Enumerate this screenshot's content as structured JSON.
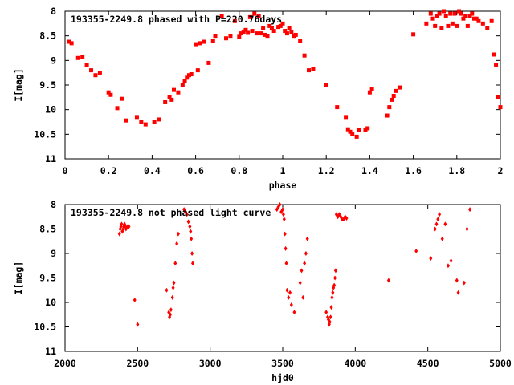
{
  "chart_data": [
    {
      "type": "scatter",
      "title": "193355-2249.8 phased with P=220.76days",
      "xlabel": "phase",
      "ylabel": "I[mag]",
      "xlim": [
        0,
        2
      ],
      "ylim": [
        8,
        11
      ],
      "y_inverted": true,
      "xticks": [
        0,
        0.2,
        0.4,
        0.6,
        0.8,
        1,
        1.2,
        1.4,
        1.6,
        1.8,
        2
      ],
      "xtick_labels": [
        "0",
        "0.2",
        "0.4",
        "0.6",
        "0.8",
        "1",
        "1.2",
        "1.4",
        "1.6",
        "1.8",
        "2"
      ],
      "yticks": [
        8,
        8.5,
        9,
        9.5,
        10,
        10.5,
        11
      ],
      "ytick_labels": [
        "8",
        "8.5",
        "9",
        "9.5",
        "10",
        "10.5",
        "11"
      ],
      "marker": "plus",
      "color": "#ff0000",
      "x": [
        0.02,
        0.03,
        0.06,
        0.08,
        0.1,
        0.12,
        0.14,
        0.16,
        0.2,
        0.21,
        0.24,
        0.26,
        0.28,
        0.33,
        0.35,
        0.37,
        0.41,
        0.43,
        0.46,
        0.48,
        0.49,
        0.5,
        0.52,
        0.54,
        0.55,
        0.56,
        0.57,
        0.58,
        0.6,
        0.61,
        0.62,
        0.64,
        0.66,
        0.68,
        0.69,
        0.72,
        0.74,
        0.76,
        0.78,
        0.8,
        0.81,
        0.82,
        0.83,
        0.84,
        0.85,
        0.86,
        0.87,
        0.88,
        0.89,
        0.9,
        0.91,
        0.92,
        0.93,
        0.94,
        0.95,
        0.96,
        0.98,
        0.99,
        1.0,
        1.01,
        1.02,
        1.03,
        1.04,
        1.05,
        1.06,
        1.08,
        1.1,
        1.12,
        1.14,
        1.2,
        1.25,
        1.29,
        1.3,
        1.31,
        1.32,
        1.34,
        1.35,
        1.38,
        1.39,
        1.4,
        1.41,
        1.48,
        1.49,
        1.5,
        1.51,
        1.52,
        1.54,
        1.6,
        1.66,
        1.68,
        1.69,
        1.7,
        1.71,
        1.72,
        1.73,
        1.74,
        1.75,
        1.76,
        1.77,
        1.78,
        1.79,
        1.8,
        1.81,
        1.82,
        1.83,
        1.84,
        1.85,
        1.86,
        1.87,
        1.88,
        1.89,
        1.9,
        1.92,
        1.94,
        1.96,
        1.97,
        1.98,
        1.99,
        2.0
      ],
      "y": [
        8.62,
        8.65,
        8.95,
        8.93,
        9.1,
        9.2,
        9.3,
        9.25,
        9.65,
        9.7,
        9.97,
        9.78,
        10.22,
        10.15,
        10.25,
        10.3,
        10.25,
        10.2,
        9.85,
        9.75,
        9.8,
        9.6,
        9.65,
        9.5,
        9.42,
        9.35,
        9.3,
        9.28,
        8.67,
        9.2,
        8.65,
        8.62,
        9.05,
        8.6,
        8.5,
        8.1,
        8.55,
        8.5,
        8.2,
        8.52,
        8.45,
        8.42,
        8.38,
        8.44,
        8.12,
        8.4,
        8.05,
        8.45,
        8.1,
        8.45,
        8.35,
        8.48,
        8.5,
        8.3,
        8.35,
        8.4,
        8.32,
        8.3,
        8.25,
        8.4,
        8.45,
        8.35,
        8.42,
        8.5,
        8.48,
        8.6,
        8.9,
        9.2,
        9.18,
        9.5,
        9.95,
        10.15,
        10.4,
        10.45,
        10.5,
        10.55,
        10.42,
        10.42,
        10.38,
        9.65,
        9.58,
        10.12,
        9.95,
        9.8,
        9.72,
        9.62,
        9.55,
        8.47,
        8.25,
        8.05,
        8.15,
        8.3,
        8.1,
        8.05,
        8.35,
        8.0,
        8.1,
        8.3,
        8.05,
        8.25,
        8.05,
        8.3,
        8.0,
        8.05,
        8.15,
        8.1,
        8.3,
        8.1,
        8.05,
        8.15,
        8.15,
        8.2,
        8.25,
        8.35,
        8.2,
        8.88,
        9.1,
        9.75,
        9.95
      ]
    },
    {
      "type": "scatter",
      "title": "193355-2249.8 not phased light curve",
      "xlabel": "hjd0",
      "ylabel": "I[mag]",
      "xlim": [
        2000,
        5000
      ],
      "ylim": [
        8,
        11
      ],
      "y_inverted": true,
      "xticks": [
        2000,
        2500,
        3000,
        3500,
        4000,
        4500,
        5000
      ],
      "xtick_labels": [
        "2000",
        "2500",
        "3000",
        "3500",
        "4000",
        "4500",
        "5000"
      ],
      "yticks": [
        8,
        8.5,
        9,
        9.5,
        10,
        10.5,
        11
      ],
      "ytick_labels": [
        "8",
        "8.5",
        "9",
        "9.5",
        "10",
        "10.5",
        "11"
      ],
      "marker": "diamond",
      "color": "#ff0000",
      "x": [
        2375,
        2380,
        2385,
        2390,
        2395,
        2400,
        2405,
        2410,
        2415,
        2420,
        2430,
        2440,
        2480,
        2500,
        2700,
        2715,
        2720,
        2725,
        2730,
        2740,
        2745,
        2750,
        2760,
        2770,
        2780,
        2820,
        2830,
        2840,
        2850,
        2860,
        2865,
        2870,
        2875,
        2880,
        3460,
        3470,
        3480,
        3490,
        3500,
        3505,
        3510,
        3515,
        3520,
        3525,
        3530,
        3540,
        3550,
        3560,
        3580,
        3620,
        3630,
        3640,
        3650,
        3660,
        3670,
        3800,
        3810,
        3815,
        3820,
        3825,
        3830,
        3835,
        3840,
        3845,
        3850,
        3855,
        3860,
        3865,
        3870,
        3880,
        3890,
        3900,
        3910,
        3920,
        3930,
        3940,
        4230,
        4420,
        4520,
        4550,
        4560,
        4570,
        4580,
        4600,
        4620,
        4640,
        4660,
        4700,
        4710,
        4750,
        4770,
        4790
      ],
      "y": [
        8.6,
        8.5,
        8.45,
        8.4,
        8.55,
        8.5,
        8.45,
        8.4,
        8.45,
        8.5,
        8.45,
        8.45,
        9.95,
        10.45,
        9.75,
        10.2,
        10.3,
        10.25,
        10.15,
        9.9,
        9.7,
        9.6,
        9.2,
        8.8,
        8.6,
        8.1,
        8.15,
        8.2,
        8.35,
        8.45,
        8.55,
        8.7,
        9.0,
        9.2,
        8.1,
        8.05,
        8.0,
        8.15,
        8.1,
        8.2,
        8.3,
        8.6,
        8.9,
        9.2,
        9.75,
        9.9,
        9.8,
        10.05,
        10.2,
        9.6,
        9.35,
        9.9,
        9.2,
        9.0,
        8.7,
        10.2,
        10.3,
        10.35,
        10.45,
        10.4,
        10.3,
        10.1,
        9.9,
        9.8,
        9.7,
        9.65,
        9.5,
        9.35,
        8.2,
        8.25,
        8.2,
        8.25,
        8.3,
        8.3,
        8.25,
        8.28,
        9.55,
        8.95,
        9.1,
        8.5,
        8.4,
        8.3,
        8.2,
        8.7,
        8.4,
        9.25,
        9.15,
        9.55,
        9.8,
        9.6,
        8.5,
        8.1
      ]
    }
  ]
}
